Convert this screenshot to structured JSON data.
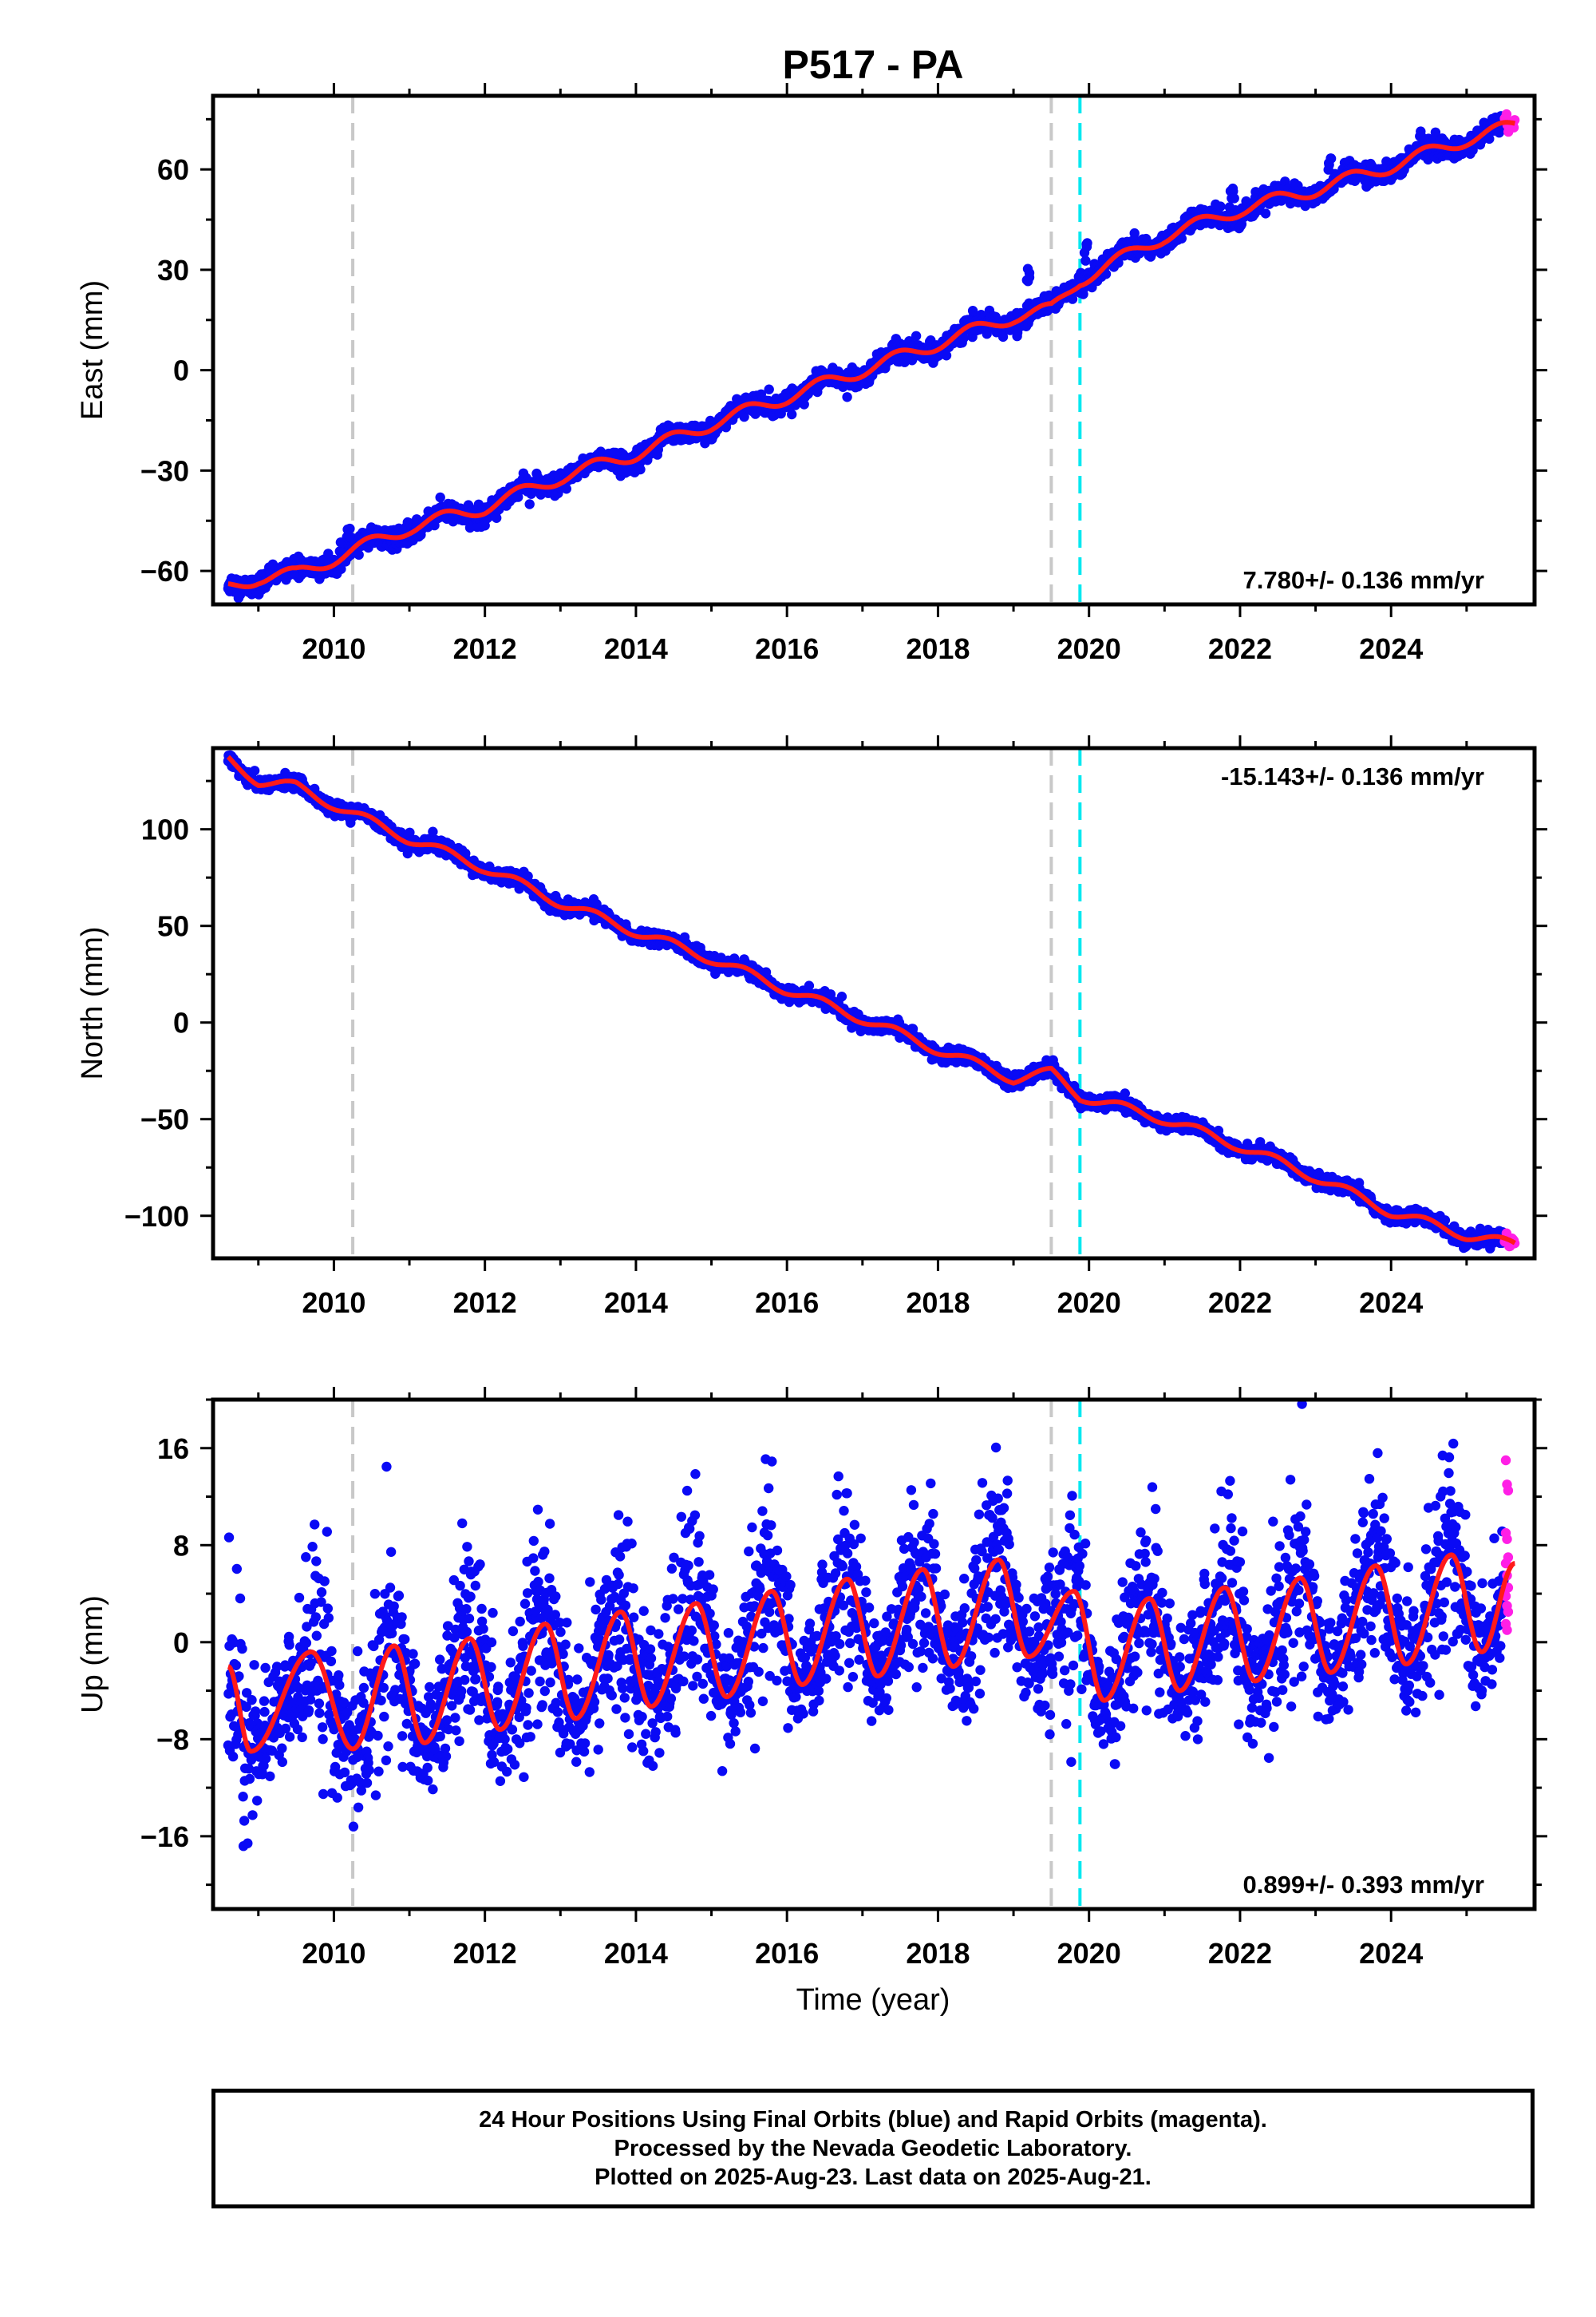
{
  "chart_data": {
    "type": "scatter",
    "title": "P517 - PA",
    "colors": {
      "final_points": "#0a0af5",
      "rapid_points": "#ff1fe6",
      "model_fit": "#ff1a1a",
      "event_gray": "#c8c8c8",
      "event_cyan": "#00e8f0"
    },
    "shared_x": {
      "xlabel": "Time (year)",
      "xlim": [
        2008.4,
        2025.9
      ],
      "major_ticks": [
        2010,
        2012,
        2014,
        2016,
        2018,
        2020,
        2022,
        2024
      ],
      "tick_labels": [
        "2010",
        "2012",
        "2014",
        "2016",
        "2018",
        "2020",
        "2022",
        "2024"
      ],
      "data_start": 2008.6,
      "final_end": 2025.5,
      "last_data": 2025.64
    },
    "event_lines": [
      {
        "x": 2010.25,
        "color": "gray"
      },
      {
        "x": 2019.5,
        "color": "gray"
      },
      {
        "x": 2019.88,
        "color": "cyan"
      }
    ],
    "panels": [
      {
        "name": "east",
        "ylabel": "East (mm)",
        "ylim": [
          -70,
          82
        ],
        "yticks": [
          -60,
          -30,
          0,
          30,
          60
        ],
        "ytick_labels": [
          "−60",
          "−30",
          "0",
          "30",
          "60"
        ],
        "rate_label": "7.780+/- 0.136 mm/yr",
        "rate_position": "bottom-right",
        "trend_start": -65.5,
        "trend_rate": 7.78,
        "seasonal_amplitude": 2.0,
        "scatter_noise": 1.4,
        "offsets": [
          {
            "x": 2019.88,
            "dy": 2
          }
        ],
        "trend_points": [
          [
            2008.6,
            -65
          ],
          [
            2009.0,
            -62
          ],
          [
            2009.5,
            -61
          ],
          [
            2010.25,
            -54
          ],
          [
            2011.0,
            -47
          ],
          [
            2012.0,
            -41
          ],
          [
            2013.0,
            -32
          ],
          [
            2014.0,
            -25
          ],
          [
            2015.0,
            -16
          ],
          [
            2016.0,
            -8
          ],
          [
            2017.0,
            0
          ],
          [
            2018.0,
            8
          ],
          [
            2019.0,
            16
          ],
          [
            2019.5,
            18
          ],
          [
            2019.88,
            27
          ],
          [
            2021.0,
            40
          ],
          [
            2022.0,
            48
          ],
          [
            2023.0,
            54
          ],
          [
            2024.0,
            61
          ],
          [
            2025.0,
            69
          ],
          [
            2025.64,
            73
          ]
        ],
        "spikes": [
          {
            "x": 2010.2,
            "dy": 8
          },
          {
            "x": 2019.2,
            "dy": 17
          },
          {
            "x": 2019.95,
            "dy": 12
          },
          {
            "x": 2023.2,
            "dy": 8
          },
          {
            "x": 2021.9,
            "dy": 9
          }
        ]
      },
      {
        "name": "north",
        "ylabel": "North (mm)",
        "ylim": [
          -122,
          142
        ],
        "yticks": [
          -100,
          -50,
          0,
          50,
          100
        ],
        "ytick_labels": [
          "−100",
          "−50",
          "0",
          "50",
          "100"
        ],
        "rate_label": "-15.143+/- 0.136 mm/yr",
        "rate_position": "top-right",
        "trend_start": 135,
        "trend_rate": -15.143,
        "seasonal_amplitude": 2.5,
        "scatter_noise": 1.8,
        "offsets": [],
        "trend_points": [
          [
            2008.6,
            136
          ],
          [
            2009.0,
            125
          ],
          [
            2009.5,
            122
          ],
          [
            2010.25,
            108
          ],
          [
            2011.0,
            95
          ],
          [
            2012.0,
            80
          ],
          [
            2013.0,
            62
          ],
          [
            2014.0,
            47
          ],
          [
            2015.0,
            33
          ],
          [
            2016.0,
            17
          ],
          [
            2017.0,
            2
          ],
          [
            2018.0,
            -14
          ],
          [
            2019.0,
            -29
          ],
          [
            2019.5,
            -26
          ],
          [
            2019.88,
            -38
          ],
          [
            2021.0,
            -50
          ],
          [
            2022.0,
            -64
          ],
          [
            2023.0,
            -80
          ],
          [
            2024.0,
            -98
          ],
          [
            2025.0,
            -110
          ],
          [
            2025.64,
            -115
          ]
        ],
        "spikes": []
      },
      {
        "name": "up",
        "ylabel": "Up (mm)",
        "ylim": [
          -22,
          20
        ],
        "yticks": [
          -16,
          -8,
          0,
          8,
          16
        ],
        "ytick_labels": [
          "−16",
          "−8",
          "0",
          "8",
          "16"
        ],
        "rate_label": "0.899+/- 0.393 mm/yr",
        "rate_position": "bottom-right",
        "trend_start": -3.8,
        "trend_rate": 0.899,
        "seasonal_amplitude": 4.0,
        "scatter_noise": 3.2,
        "offsets": [],
        "fit_minima": [
          [
            2008.9,
            -9.0
          ],
          [
            2010.25,
            -8.8
          ],
          [
            2011.2,
            -8.3
          ],
          [
            2012.2,
            -7.2
          ],
          [
            2013.2,
            -6.3
          ],
          [
            2014.2,
            -5.3
          ],
          [
            2015.2,
            -4.5
          ],
          [
            2016.2,
            -3.5
          ],
          [
            2017.2,
            -2.8
          ],
          [
            2018.2,
            -2.0
          ],
          [
            2019.2,
            -1.2
          ],
          [
            2020.2,
            -4.8
          ],
          [
            2021.2,
            -4.0
          ],
          [
            2022.2,
            -3.2
          ],
          [
            2023.2,
            -2.5
          ],
          [
            2024.2,
            -1.8
          ],
          [
            2025.2,
            -0.8
          ]
        ],
        "fit_maxima": [
          [
            2008.6,
            -2.0
          ],
          [
            2009.7,
            -0.8
          ],
          [
            2010.8,
            -0.3
          ],
          [
            2011.8,
            0.3
          ],
          [
            2012.8,
            1.5
          ],
          [
            2013.8,
            2.5
          ],
          [
            2014.8,
            3.2
          ],
          [
            2015.8,
            4.2
          ],
          [
            2016.8,
            5.2
          ],
          [
            2017.8,
            6.0
          ],
          [
            2018.8,
            6.8
          ],
          [
            2019.8,
            4.2
          ],
          [
            2020.8,
            3.6
          ],
          [
            2021.8,
            4.5
          ],
          [
            2022.8,
            5.3
          ],
          [
            2023.8,
            6.3
          ],
          [
            2024.8,
            7.2
          ],
          [
            2025.64,
            6.5
          ]
        ],
        "rapid_values": [
          15,
          13,
          12.5,
          9,
          8.5,
          7,
          6.5,
          5.5,
          4.5,
          3.8,
          3,
          2.5,
          1.5,
          1
        ]
      }
    ]
  },
  "footer": {
    "line1": "24 Hour Positions Using Final Orbits (blue) and Rapid Orbits (magenta).",
    "line2": "Processed by the Nevada Geodetic Laboratory.",
    "line3": "Plotted on 2025-Aug-23. Last data on 2025-Aug-21."
  }
}
